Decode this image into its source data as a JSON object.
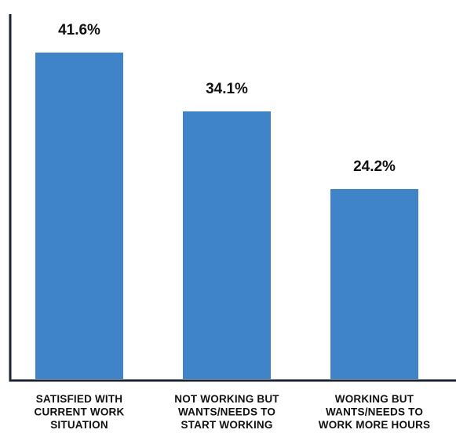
{
  "chart_data": {
    "type": "bar",
    "categories": [
      [
        "SATISFIED WITH",
        "CURRENT WORK",
        "SITUATION"
      ],
      [
        "NOT WORKING BUT",
        "WANTS/NEEDS TO",
        "START WORKING"
      ],
      [
        "WORKING BUT",
        "WANTS/NEEDS TO",
        "WORK MORE HOURS"
      ]
    ],
    "values": [
      41.6,
      34.1,
      24.2
    ],
    "data_labels": [
      "41.6%",
      "34.1%",
      "24.2%"
    ],
    "title": "",
    "xlabel": "",
    "ylabel": "",
    "ylim": [
      0,
      50
    ],
    "grid": false,
    "legend": "none",
    "bar_color": "#3f84c8",
    "axis_color": "#1b2430"
  }
}
